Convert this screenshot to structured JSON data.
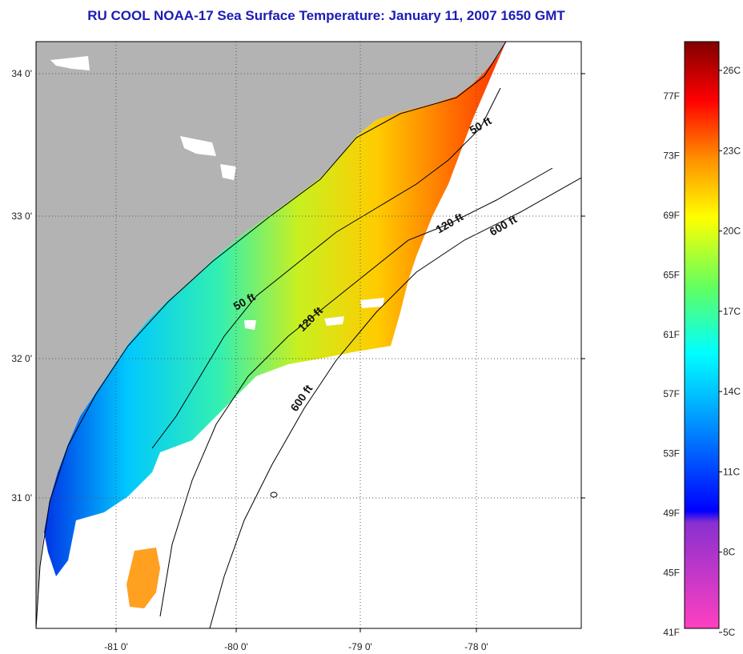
{
  "title": "RU COOL  NOAA-17  Sea Surface Temperature:  January 11, 2007 1650 GMT",
  "axes": {
    "lon_ticks": [
      "-81 0'",
      "-80 0'",
      "-79 0'",
      "-78 0'"
    ],
    "lat_ticks": [
      "34 0'",
      "33 0'",
      "32 0'",
      "31 0'"
    ]
  },
  "contours": [
    {
      "label": "50 ft",
      "rotate": -30
    },
    {
      "label": "120 ft",
      "rotate": -30
    },
    {
      "label": "600 ft",
      "rotate": -30
    },
    {
      "label": "50 ft",
      "rotate": -30
    },
    {
      "label": "120 ft",
      "rotate": -45
    },
    {
      "label": "600 ft",
      "rotate": -55
    }
  ],
  "colorbar": {
    "fahrenheit": [
      "77F",
      "73F",
      "69F",
      "65F",
      "61F",
      "57F",
      "53F",
      "49F",
      "45F",
      "41F"
    ],
    "celsius": [
      "26C",
      "23C",
      "20C",
      "17C",
      "14C",
      "11C",
      "8C",
      "5C"
    ]
  },
  "colors": {
    "land": "#b3b3b3",
    "title": "#1c1cb4",
    "ocean_nodata": "#ffffff"
  }
}
